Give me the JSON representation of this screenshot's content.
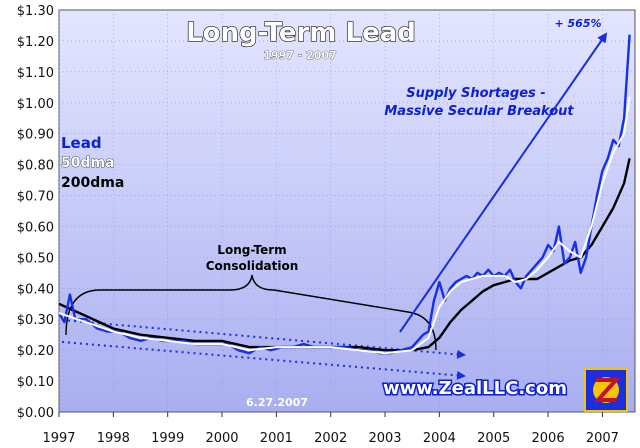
{
  "chart_data": {
    "type": "line",
    "title": "Long-Term Lead",
    "subtitle": "1997 - 2007",
    "xlabel": "",
    "ylabel": "",
    "xlim": [
      1997.0,
      2007.6
    ],
    "ylim": [
      0.0,
      1.3
    ],
    "x_ticks": [
      "1997",
      "1998",
      "1999",
      "2000",
      "2001",
      "2002",
      "2003",
      "2004",
      "2005",
      "2006",
      "2007"
    ],
    "y_ticks": [
      "$0.00",
      "$0.10",
      "$0.20",
      "$0.30",
      "$0.40",
      "$0.50",
      "$0.60",
      "$0.70",
      "$0.80",
      "$0.90",
      "$1.00",
      "$1.10",
      "$1.20",
      "$1.30"
    ],
    "grid": true,
    "legend": [
      "Lead",
      "50dma",
      "200dma"
    ],
    "legend_position": "left",
    "colors": {
      "lead": "#1530e6",
      "ma50": "#ffffff",
      "ma200": "#000000",
      "plot_bg_top": "#dfe1ff",
      "plot_bg_bottom": "#aeb3f2",
      "arrow": "#1a2ee0"
    },
    "series": [
      {
        "name": "Lead",
        "x": [
          1997.0,
          1997.1,
          1997.2,
          1997.3,
          1997.5,
          1997.7,
          1997.9,
          1998.1,
          1998.3,
          1998.5,
          1998.7,
          1998.9,
          1999.1,
          1999.3,
          1999.5,
          1999.7,
          1999.9,
          2000.1,
          2000.3,
          2000.5,
          2000.7,
          2000.9,
          2001.1,
          2001.3,
          2001.5,
          2001.7,
          2001.9,
          2002.1,
          2002.3,
          2002.5,
          2002.7,
          2002.9,
          2003.1,
          2003.3,
          2003.5,
          2003.7,
          2003.8,
          2003.9,
          2004.0,
          2004.1,
          2004.2,
          2004.3,
          2004.4,
          2004.5,
          2004.6,
          2004.7,
          2004.8,
          2004.9,
          2005.0,
          2005.1,
          2005.2,
          2005.3,
          2005.4,
          2005.5,
          2005.6,
          2005.7,
          2005.8,
          2005.9,
          2006.0,
          2006.1,
          2006.2,
          2006.3,
          2006.4,
          2006.5,
          2006.6,
          2006.7,
          2006.8,
          2006.9,
          2007.0,
          2007.1,
          2007.2,
          2007.3,
          2007.4,
          2007.5
        ],
        "values": [
          0.32,
          0.29,
          0.38,
          0.3,
          0.3,
          0.27,
          0.26,
          0.26,
          0.24,
          0.23,
          0.24,
          0.23,
          0.23,
          0.23,
          0.22,
          0.22,
          0.22,
          0.22,
          0.2,
          0.19,
          0.21,
          0.2,
          0.21,
          0.21,
          0.22,
          0.21,
          0.21,
          0.21,
          0.21,
          0.2,
          0.2,
          0.19,
          0.19,
          0.2,
          0.21,
          0.25,
          0.26,
          0.36,
          0.42,
          0.36,
          0.4,
          0.42,
          0.43,
          0.44,
          0.43,
          0.45,
          0.44,
          0.46,
          0.44,
          0.45,
          0.44,
          0.46,
          0.42,
          0.4,
          0.44,
          0.46,
          0.48,
          0.5,
          0.54,
          0.52,
          0.6,
          0.48,
          0.5,
          0.55,
          0.45,
          0.5,
          0.6,
          0.7,
          0.78,
          0.82,
          0.88,
          0.86,
          0.95,
          1.22
        ]
      },
      {
        "name": "50dma",
        "x": [
          1997.0,
          1997.5,
          1998.0,
          1998.5,
          1999.0,
          1999.5,
          2000.0,
          2000.5,
          2001.0,
          2001.5,
          2002.0,
          2002.5,
          2003.0,
          2003.5,
          2003.8,
          2004.0,
          2004.2,
          2004.4,
          2004.6,
          2004.8,
          2005.0,
          2005.2,
          2005.4,
          2005.6,
          2005.8,
          2006.0,
          2006.2,
          2006.4,
          2006.6,
          2006.8,
          2007.0,
          2007.2,
          2007.4,
          2007.5
        ],
        "values": [
          0.32,
          0.29,
          0.26,
          0.24,
          0.23,
          0.22,
          0.22,
          0.2,
          0.21,
          0.21,
          0.21,
          0.2,
          0.19,
          0.2,
          0.24,
          0.34,
          0.39,
          0.42,
          0.43,
          0.44,
          0.44,
          0.44,
          0.42,
          0.43,
          0.46,
          0.5,
          0.55,
          0.52,
          0.5,
          0.6,
          0.74,
          0.84,
          0.9,
          1.02
        ]
      },
      {
        "name": "200dma",
        "x": [
          1997.0,
          1997.5,
          1998.0,
          1998.5,
          1999.0,
          1999.5,
          2000.0,
          2000.5,
          2001.0,
          2001.5,
          2002.0,
          2002.5,
          2003.0,
          2003.5,
          2003.8,
          2004.0,
          2004.2,
          2004.4,
          2004.6,
          2004.8,
          2005.0,
          2005.2,
          2005.4,
          2005.6,
          2005.8,
          2006.0,
          2006.2,
          2006.4,
          2006.6,
          2006.8,
          2007.0,
          2007.2,
          2007.4,
          2007.5
        ],
        "values": [
          0.35,
          0.31,
          0.27,
          0.25,
          0.24,
          0.23,
          0.23,
          0.21,
          0.21,
          0.21,
          0.21,
          0.21,
          0.2,
          0.2,
          0.21,
          0.24,
          0.29,
          0.33,
          0.36,
          0.39,
          0.41,
          0.42,
          0.43,
          0.43,
          0.43,
          0.45,
          0.47,
          0.49,
          0.5,
          0.54,
          0.6,
          0.66,
          0.74,
          0.82
        ]
      }
    ],
    "annotations": {
      "legend_lead": "Lead",
      "legend_50dma": "50dma",
      "legend_200dma": "200dma",
      "breakout_line1": "Supply Shortages -",
      "breakout_line2": "Massive Secular Breakout",
      "gain": "+ 565%",
      "consolidation_line1": "Long-Term",
      "consolidation_line2": "Consolidation",
      "date": "6.27.2007",
      "website": "www.ZealLLC.com"
    }
  }
}
